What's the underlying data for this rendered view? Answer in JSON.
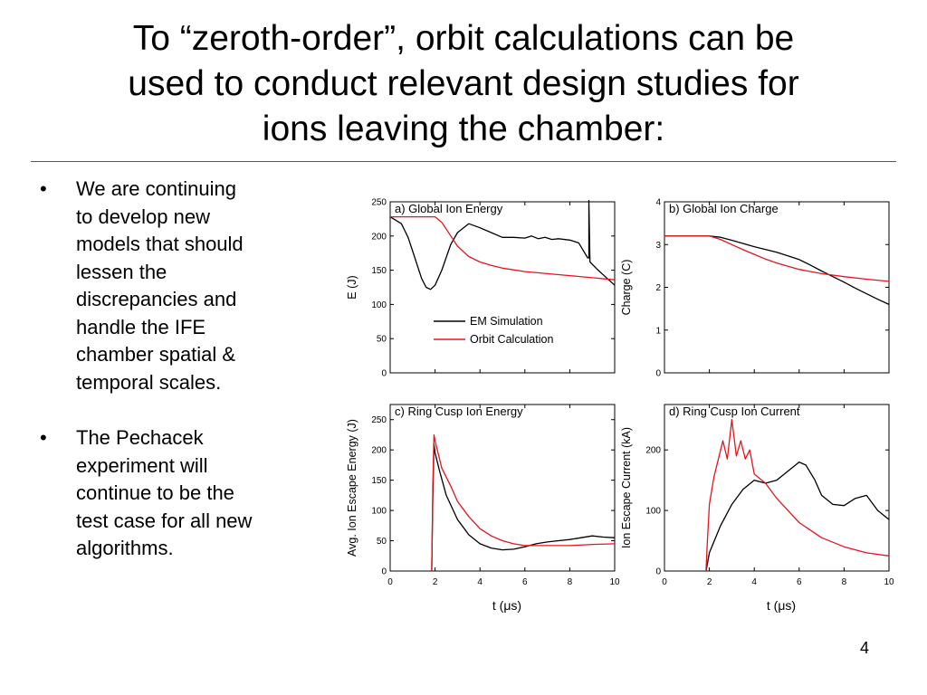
{
  "slide": {
    "title_lines": [
      "To “zeroth-order”, orbit calculations can be",
      "used to conduct relevant design studies for",
      "ions leaving the chamber:"
    ],
    "bullets": [
      [
        "We are continuing",
        "to develop new",
        "models that should",
        "lessen the",
        "discrepancies and",
        "handle the IFE",
        "chamber spatial &",
        "temporal scales."
      ],
      [
        "The Pechacek",
        "experiment will",
        "continue to be the",
        "test case for all new",
        "algorithms."
      ]
    ],
    "page_number": "4"
  },
  "chart_data": [
    {
      "type": "line",
      "panel_title": "a) Global Ion Energy",
      "ylabel": "E (J)",
      "xlabel": "",
      "xlim": [
        0,
        10
      ],
      "ylim": [
        0,
        250
      ],
      "xticks": [
        0,
        2,
        4,
        6,
        8,
        10
      ],
      "yticks": [
        0,
        50,
        100,
        150,
        200,
        250
      ],
      "show_x_tick_labels": false,
      "legend": [
        "EM Simulation",
        "Orbit Calculation"
      ],
      "series": [
        {
          "name": "EM Simulation",
          "color": "#000000",
          "x": [
            0,
            0.5,
            0.8,
            1.1,
            1.4,
            1.6,
            1.8,
            2.0,
            2.3,
            2.7,
            3.0,
            3.5,
            4.0,
            4.5,
            5.0,
            5.5,
            6.0,
            6.3,
            6.6,
            6.9,
            7.2,
            7.5,
            8.0,
            8.4,
            8.8,
            8.85,
            8.85,
            8.9,
            9.2,
            9.6,
            10.0
          ],
          "y": [
            228,
            218,
            198,
            168,
            138,
            125,
            122,
            128,
            150,
            188,
            205,
            218,
            212,
            205,
            198,
            198,
            197,
            200,
            196,
            198,
            195,
            196,
            194,
            190,
            168,
            168,
            252,
            162,
            152,
            140,
            128
          ]
        },
        {
          "name": "Orbit Calculation",
          "color": "#e8141c",
          "x": [
            0,
            2.0,
            2.3,
            2.7,
            3.0,
            3.5,
            4.0,
            4.5,
            5.0,
            6.0,
            7.0,
            8.0,
            9.0,
            10.0
          ],
          "y": [
            228,
            228,
            220,
            200,
            185,
            170,
            162,
            157,
            153,
            148,
            145,
            142,
            139,
            136
          ]
        }
      ]
    },
    {
      "type": "line",
      "panel_title": "b) Global Ion Charge",
      "ylabel": "Charge (C)",
      "xlabel": "",
      "xlim": [
        0,
        10
      ],
      "ylim": [
        0,
        4
      ],
      "xticks": [
        0,
        2,
        4,
        6,
        8,
        10
      ],
      "yticks": [
        0,
        1,
        2,
        3,
        4
      ],
      "show_x_tick_labels": false,
      "series": [
        {
          "name": "EM Simulation",
          "color": "#000000",
          "x": [
            0,
            2.0,
            2.5,
            3.0,
            4.0,
            5.0,
            6.0,
            6.5,
            7.0,
            7.5,
            8.0,
            8.5,
            9.0,
            9.5,
            10.0
          ],
          "y": [
            3.2,
            3.2,
            3.17,
            3.1,
            2.95,
            2.82,
            2.65,
            2.52,
            2.38,
            2.25,
            2.12,
            1.98,
            1.85,
            1.72,
            1.6
          ]
        },
        {
          "name": "Orbit Calculation",
          "color": "#e8141c",
          "x": [
            0,
            2.0,
            2.5,
            3.0,
            3.5,
            4.0,
            4.5,
            5.0,
            5.5,
            6.0,
            7.0,
            8.0,
            9.0,
            10.0
          ],
          "y": [
            3.2,
            3.2,
            3.12,
            3.0,
            2.88,
            2.77,
            2.66,
            2.57,
            2.49,
            2.42,
            2.32,
            2.25,
            2.19,
            2.14
          ]
        }
      ]
    },
    {
      "type": "line",
      "panel_title": "c) Ring Cusp Ion Energy",
      "ylabel": "Avg. Ion Escape Energy (J)",
      "xlabel": "t (μs)",
      "xlim": [
        0,
        10
      ],
      "ylim": [
        0,
        275
      ],
      "xticks": [
        0,
        2,
        4,
        6,
        8,
        10
      ],
      "yticks": [
        0,
        50,
        100,
        150,
        200,
        250
      ],
      "show_x_tick_labels": true,
      "series": [
        {
          "name": "EM Simulation",
          "color": "#000000",
          "x": [
            1.85,
            1.9,
            1.95,
            2.0,
            2.2,
            2.5,
            3.0,
            3.5,
            4.0,
            4.5,
            5.0,
            5.5,
            6.0,
            6.5,
            7.0,
            7.5,
            8.0,
            8.5,
            9.0,
            9.5,
            10.0
          ],
          "y": [
            0,
            120,
            210,
            195,
            165,
            125,
            85,
            60,
            45,
            38,
            35,
            36,
            40,
            45,
            48,
            50,
            52,
            55,
            58,
            56,
            55
          ]
        },
        {
          "name": "Orbit Calculation",
          "color": "#e8141c",
          "x": [
            1.85,
            1.9,
            1.95,
            2.0,
            2.3,
            2.7,
            3.0,
            3.5,
            4.0,
            4.5,
            5.0,
            5.5,
            6.0,
            7.0,
            8.0,
            9.0,
            10.0
          ],
          "y": [
            0,
            140,
            225,
            215,
            170,
            140,
            115,
            90,
            70,
            58,
            50,
            45,
            42,
            42,
            42,
            44,
            45
          ]
        }
      ]
    },
    {
      "type": "line",
      "panel_title": "d) Ring Cusp Ion Current",
      "ylabel": "Ion Escape Current (kA)",
      "xlabel": "t (μs)",
      "xlim": [
        0,
        10
      ],
      "ylim": [
        0,
        275
      ],
      "xticks": [
        0,
        2,
        4,
        6,
        8,
        10
      ],
      "yticks": [
        0,
        100,
        200
      ],
      "show_x_tick_labels": true,
      "series": [
        {
          "name": "EM Simulation",
          "color": "#000000",
          "x": [
            1.85,
            2.0,
            2.5,
            3.0,
            3.5,
            4.0,
            4.5,
            5.0,
            5.5,
            6.0,
            6.3,
            6.7,
            7.0,
            7.5,
            8.0,
            8.5,
            9.0,
            9.5,
            10.0
          ],
          "y": [
            0,
            30,
            75,
            110,
            135,
            150,
            145,
            150,
            165,
            180,
            175,
            150,
            125,
            110,
            108,
            120,
            125,
            100,
            85
          ]
        },
        {
          "name": "Orbit Calculation",
          "color": "#e8141c",
          "x": [
            1.85,
            1.9,
            2.0,
            2.2,
            2.5,
            2.6,
            2.8,
            3.0,
            3.2,
            3.4,
            3.6,
            3.8,
            4.0,
            4.5,
            5.0,
            5.5,
            6.0,
            7.0,
            8.0,
            9.0,
            10.0
          ],
          "y": [
            0,
            40,
            110,
            155,
            200,
            215,
            185,
            250,
            190,
            215,
            185,
            200,
            160,
            145,
            120,
            100,
            80,
            55,
            40,
            30,
            25
          ]
        }
      ]
    }
  ]
}
